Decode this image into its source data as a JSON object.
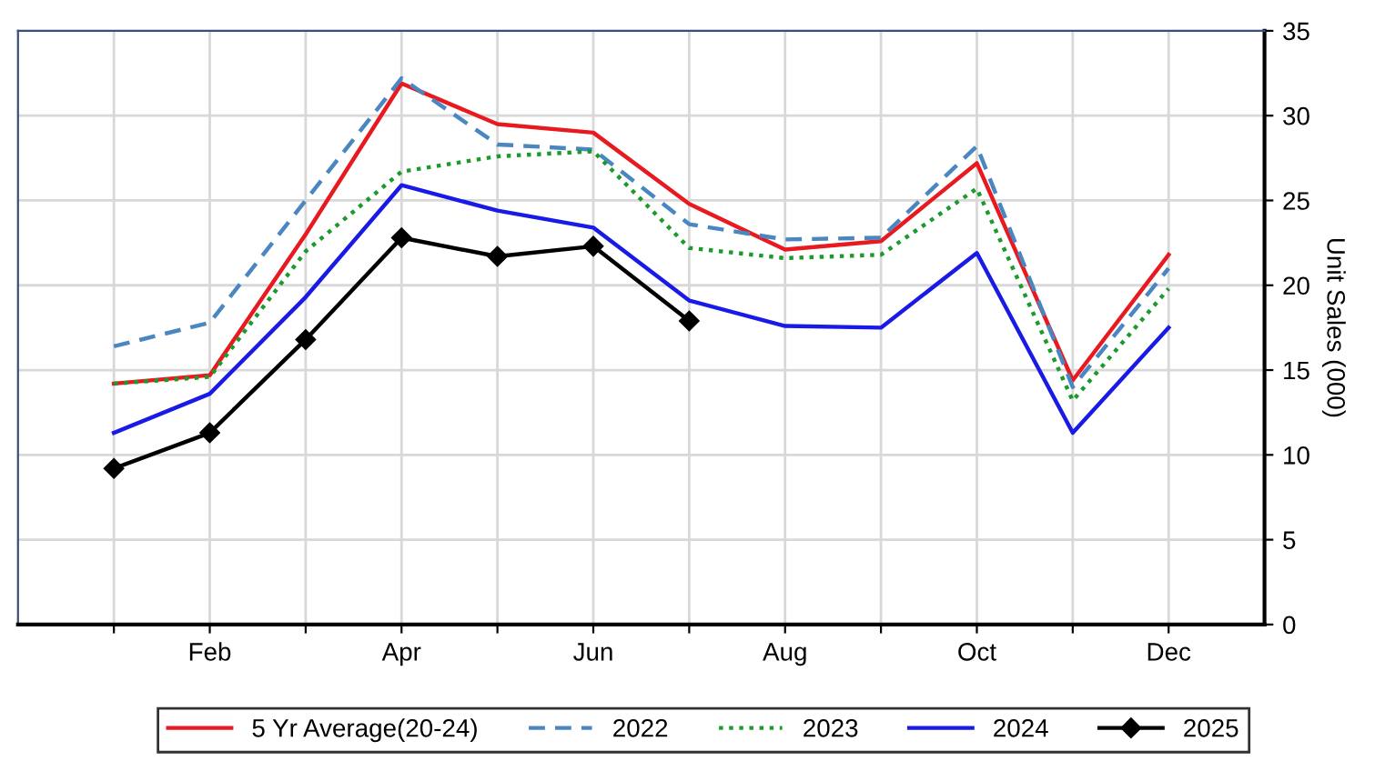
{
  "chart_data": {
    "type": "line",
    "ylabel": "Unit Sales (000)",
    "categories": [
      null,
      "Feb",
      null,
      "Apr",
      null,
      "Jun",
      null,
      "Aug",
      null,
      "Oct",
      null,
      "Dec"
    ],
    "ylim": [
      0,
      35
    ],
    "yticks": [
      0,
      5,
      10,
      15,
      20,
      25,
      30,
      35
    ],
    "grid": true,
    "legend": "bottom",
    "series": [
      {
        "name": "5 Yr Average(20-24)",
        "color": "#e8191f",
        "line_style": "solid",
        "marker": "none",
        "values": [
          14.2,
          14.7,
          23,
          31.9,
          29.5,
          29,
          24.8,
          22.1,
          22.6,
          27.2,
          14.4,
          21.8
        ]
      },
      {
        "name": "2022",
        "color": "#4a86c0",
        "line_style": "dashed",
        "marker": "none",
        "values": [
          16.4,
          17.8,
          25,
          32.2,
          28.3,
          28,
          23.6,
          22.7,
          22.8,
          28.2,
          14,
          21
        ]
      },
      {
        "name": "2023",
        "color": "#1c9a2c",
        "line_style": "dotted",
        "marker": "none",
        "values": [
          14.2,
          14.6,
          22,
          26.7,
          27.6,
          27.9,
          22.2,
          21.6,
          21.8,
          25.7,
          13.2,
          19.8
        ]
      },
      {
        "name": "2024",
        "color": "#1a1ae6",
        "line_style": "solid",
        "marker": "none",
        "values": [
          11.3,
          13.6,
          19.3,
          25.9,
          24.4,
          23.4,
          19.1,
          17.6,
          17.5,
          21.9,
          11.3,
          17.5
        ]
      },
      {
        "name": "2025",
        "color": "#000000",
        "line_style": "solid",
        "marker": "diamond",
        "values": [
          9.2,
          11.3,
          16.8,
          22.8,
          21.7,
          22.3,
          17.9,
          null,
          null,
          null,
          null,
          null
        ]
      }
    ]
  }
}
